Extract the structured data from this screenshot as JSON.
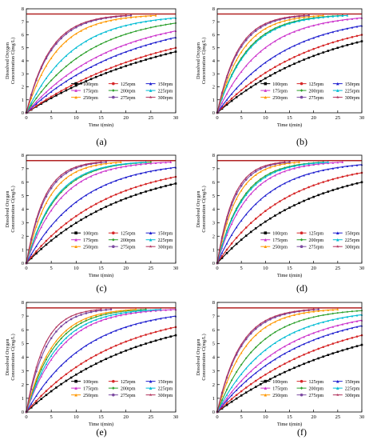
{
  "figure": {
    "panels_order": [
      "a",
      "b",
      "c",
      "d",
      "e",
      "f"
    ]
  },
  "chart_data": [
    {
      "panel_label": "(a)",
      "type": "line",
      "xlabel": "Time t(min)",
      "ylabel": [
        "Dissolved Oxygen",
        "Concentration C(mg/L)"
      ],
      "xlim": [
        0,
        30
      ],
      "ylim": [
        0,
        8
      ],
      "xticks": [
        0,
        5,
        10,
        15,
        20,
        25,
        30
      ],
      "yticks": [
        0,
        1,
        2,
        3,
        4,
        5,
        6,
        7,
        8
      ],
      "saturation": 7.6,
      "grid": false,
      "legend_position": "bottom-right",
      "legend_columns": 3,
      "series": [
        {
          "name": "100rpm",
          "color": "#000000",
          "marker": "square",
          "final_t": 30,
          "final_c": 4.7
        },
        {
          "name": "125rpm",
          "color": "#d62728",
          "marker": "circle",
          "final_t": 30,
          "final_c": 5.0
        },
        {
          "name": "150rpm",
          "color": "#1f1fcf",
          "marker": "triangle",
          "final_t": 30,
          "final_c": 5.8
        },
        {
          "name": "175rpm",
          "color": "#cc33cc",
          "marker": "triangle",
          "final_t": 30,
          "final_c": 6.3
        },
        {
          "name": "200rpm",
          "color": "#2ca02c",
          "marker": "diamond",
          "final_t": 30,
          "final_c": 6.9
        },
        {
          "name": "225rpm",
          "color": "#00bcd4",
          "marker": "triangle",
          "final_t": 30,
          "final_c": 7.3
        },
        {
          "name": "250rpm",
          "color": "#ff9800",
          "marker": "triangle",
          "final_t": 26,
          "final_c": 7.6
        },
        {
          "name": "275rpm",
          "color": "#7b4aa1",
          "marker": "circle",
          "final_t": 21,
          "final_c": 7.6
        },
        {
          "name": "300rpm",
          "color": "#b0305a",
          "marker": "star",
          "final_t": 20,
          "final_c": 7.6
        }
      ]
    },
    {
      "panel_label": "(b)",
      "type": "line",
      "xlabel": "Time t(min)",
      "ylabel": [
        "Dissolved Oxygen",
        "Concentration C(mg/L)"
      ],
      "xlim": [
        0,
        30
      ],
      "ylim": [
        0,
        8
      ],
      "xticks": [
        0,
        5,
        10,
        15,
        20,
        25,
        30
      ],
      "yticks": [
        0,
        1,
        2,
        3,
        4,
        5,
        6,
        7,
        8
      ],
      "saturation": 7.6,
      "grid": false,
      "legend_position": "bottom-right",
      "legend_columns": 3,
      "series": [
        {
          "name": "100rpm",
          "color": "#000000",
          "marker": "square",
          "final_t": 30,
          "final_c": 5.5
        },
        {
          "name": "125rpm",
          "color": "#d62728",
          "marker": "circle",
          "final_t": 30,
          "final_c": 6.0
        },
        {
          "name": "150rpm",
          "color": "#1f1fcf",
          "marker": "triangle",
          "final_t": 30,
          "final_c": 6.7
        },
        {
          "name": "175rpm",
          "color": "#cc33cc",
          "marker": "triangle",
          "final_t": 30,
          "final_c": 7.3
        },
        {
          "name": "200rpm",
          "color": "#2ca02c",
          "marker": "diamond",
          "final_t": 26,
          "final_c": 7.6
        },
        {
          "name": "225rpm",
          "color": "#00bcd4",
          "marker": "triangle",
          "final_t": 27,
          "final_c": 7.6
        },
        {
          "name": "250rpm",
          "color": "#ff9800",
          "marker": "triangle",
          "final_t": 22,
          "final_c": 7.6
        },
        {
          "name": "275rpm",
          "color": "#7b4aa1",
          "marker": "circle",
          "final_t": 19,
          "final_c": 7.6
        },
        {
          "name": "300rpm",
          "color": "#b0305a",
          "marker": "star",
          "final_t": 18,
          "final_c": 7.6
        }
      ]
    },
    {
      "panel_label": "(c)",
      "type": "line",
      "xlabel": "Time t(min)",
      "ylabel": [
        "Dissolved Oxygen",
        "Concentration C(mg/L)"
      ],
      "xlim": [
        0,
        30
      ],
      "ylim": [
        0,
        8
      ],
      "xticks": [
        0,
        5,
        10,
        15,
        20,
        25,
        30
      ],
      "yticks": [
        0,
        1,
        2,
        3,
        4,
        5,
        6,
        7,
        8
      ],
      "saturation": 7.6,
      "grid": false,
      "legend_position": "bottom-right",
      "legend_columns": 3,
      "series": [
        {
          "name": "100rpm",
          "color": "#000000",
          "marker": "square",
          "final_t": 30,
          "final_c": 5.9
        },
        {
          "name": "125rpm",
          "color": "#d62728",
          "marker": "circle",
          "final_t": 30,
          "final_c": 6.4
        },
        {
          "name": "150rpm",
          "color": "#1f1fcf",
          "marker": "triangle",
          "final_t": 30,
          "final_c": 7.1
        },
        {
          "name": "175rpm",
          "color": "#cc33cc",
          "marker": "triangle",
          "final_t": 29,
          "final_c": 7.6
        },
        {
          "name": "200rpm",
          "color": "#2ca02c",
          "marker": "diamond",
          "final_t": 25,
          "final_c": 7.6
        },
        {
          "name": "225rpm",
          "color": "#00bcd4",
          "marker": "triangle",
          "final_t": 24,
          "final_c": 7.6
        },
        {
          "name": "250rpm",
          "color": "#ff9800",
          "marker": "triangle",
          "final_t": 19,
          "final_c": 7.6
        },
        {
          "name": "275rpm",
          "color": "#7b4aa1",
          "marker": "circle",
          "final_t": 16,
          "final_c": 7.6
        },
        {
          "name": "300rpm",
          "color": "#b0305a",
          "marker": "star",
          "final_t": 15,
          "final_c": 7.6
        }
      ]
    },
    {
      "panel_label": "(d)",
      "type": "line",
      "xlabel": "Time t(min)",
      "ylabel": [
        "Dissolved Oxygen",
        "Concentration C(mg/L)"
      ],
      "xlim": [
        0,
        30
      ],
      "ylim": [
        0,
        8
      ],
      "xticks": [
        0,
        5,
        10,
        15,
        20,
        25,
        30
      ],
      "yticks": [
        0,
        1,
        2,
        3,
        4,
        5,
        6,
        7,
        8
      ],
      "saturation": 7.6,
      "grid": false,
      "legend_position": "bottom-right",
      "legend_columns": 3,
      "series": [
        {
          "name": "100rpm",
          "color": "#000000",
          "marker": "square",
          "final_t": 30,
          "final_c": 6.0
        },
        {
          "name": "125rpm",
          "color": "#d62728",
          "marker": "circle",
          "final_t": 30,
          "final_c": 6.7
        },
        {
          "name": "150rpm",
          "color": "#1f1fcf",
          "marker": "triangle",
          "final_t": 30,
          "final_c": 7.3
        },
        {
          "name": "175rpm",
          "color": "#cc33cc",
          "marker": "triangle",
          "final_t": 26,
          "final_c": 7.6
        },
        {
          "name": "200rpm",
          "color": "#2ca02c",
          "marker": "diamond",
          "final_t": 22,
          "final_c": 7.6
        },
        {
          "name": "225rpm",
          "color": "#00bcd4",
          "marker": "triangle",
          "final_t": 23,
          "final_c": 7.6
        },
        {
          "name": "250rpm",
          "color": "#ff9800",
          "marker": "triangle",
          "final_t": 17,
          "final_c": 7.6
        },
        {
          "name": "275rpm",
          "color": "#7b4aa1",
          "marker": "circle",
          "final_t": 15,
          "final_c": 7.6
        },
        {
          "name": "300rpm",
          "color": "#b0305a",
          "marker": "star",
          "final_t": 14,
          "final_c": 7.6
        }
      ]
    },
    {
      "panel_label": "(e)",
      "type": "line",
      "xlabel": "Time t(min)",
      "ylabel": [
        "Dissolved Oxygen",
        "Concentration C(mg/L)"
      ],
      "xlim": [
        0,
        30
      ],
      "ylim": [
        0,
        8
      ],
      "xticks": [
        0,
        5,
        10,
        15,
        20,
        25,
        30
      ],
      "yticks": [
        0,
        1,
        2,
        3,
        4,
        5,
        6,
        7,
        8
      ],
      "saturation": 7.6,
      "grid": false,
      "legend_position": "bottom-right",
      "legend_columns": 3,
      "series": [
        {
          "name": "100rpm",
          "color": "#000000",
          "marker": "square",
          "final_t": 30,
          "final_c": 5.6
        },
        {
          "name": "125rpm",
          "color": "#d62728",
          "marker": "circle",
          "final_t": 30,
          "final_c": 6.2
        },
        {
          "name": "150rpm",
          "color": "#1f1fcf",
          "marker": "triangle",
          "final_t": 30,
          "final_c": 7.0
        },
        {
          "name": "175rpm",
          "color": "#cc33cc",
          "marker": "triangle",
          "final_t": 30,
          "final_c": 7.5
        },
        {
          "name": "200rpm",
          "color": "#2ca02c",
          "marker": "diamond",
          "final_t": 24,
          "final_c": 7.6
        },
        {
          "name": "225rpm",
          "color": "#00bcd4",
          "marker": "triangle",
          "final_t": 27,
          "final_c": 7.6
        },
        {
          "name": "250rpm",
          "color": "#ff9800",
          "marker": "triangle",
          "final_t": 22,
          "final_c": 7.6
        },
        {
          "name": "275rpm",
          "color": "#7b4aa1",
          "marker": "circle",
          "final_t": 17,
          "final_c": 7.6
        },
        {
          "name": "300rpm",
          "color": "#b0305a",
          "marker": "star",
          "final_t": 15,
          "final_c": 7.6
        }
      ]
    },
    {
      "panel_label": "(f)",
      "type": "line",
      "xlabel": "Time t(min)",
      "ylabel": [
        "Dissolved Oxygen",
        "Concentration C(mg/L)"
      ],
      "xlim": [
        0,
        30
      ],
      "ylim": [
        0,
        8
      ],
      "xticks": [
        0,
        5,
        10,
        15,
        20,
        25,
        30
      ],
      "yticks": [
        0,
        1,
        2,
        3,
        4,
        5,
        6,
        7,
        8
      ],
      "saturation": 7.6,
      "grid": false,
      "legend_position": "bottom-right",
      "legend_columns": 3,
      "series": [
        {
          "name": "100rpm",
          "color": "#000000",
          "marker": "square",
          "final_t": 30,
          "final_c": 4.9
        },
        {
          "name": "125rpm",
          "color": "#d62728",
          "marker": "circle",
          "final_t": 30,
          "final_c": 5.6
        },
        {
          "name": "150rpm",
          "color": "#1f1fcf",
          "marker": "triangle",
          "final_t": 30,
          "final_c": 6.3
        },
        {
          "name": "175rpm",
          "color": "#cc33cc",
          "marker": "triangle",
          "final_t": 30,
          "final_c": 6.7
        },
        {
          "name": "200rpm",
          "color": "#2ca02c",
          "marker": "diamond",
          "final_t": 30,
          "final_c": 7.4
        },
        {
          "name": "225rpm",
          "color": "#00bcd4",
          "marker": "triangle",
          "final_t": 30,
          "final_c": 7.1
        },
        {
          "name": "250rpm",
          "color": "#ff9800",
          "marker": "triangle",
          "final_t": 25,
          "final_c": 7.6
        },
        {
          "name": "275rpm",
          "color": "#7b4aa1",
          "marker": "circle",
          "final_t": 21,
          "final_c": 7.6
        },
        {
          "name": "300rpm",
          "color": "#b0305a",
          "marker": "star",
          "final_t": 20,
          "final_c": 7.6
        }
      ]
    }
  ]
}
